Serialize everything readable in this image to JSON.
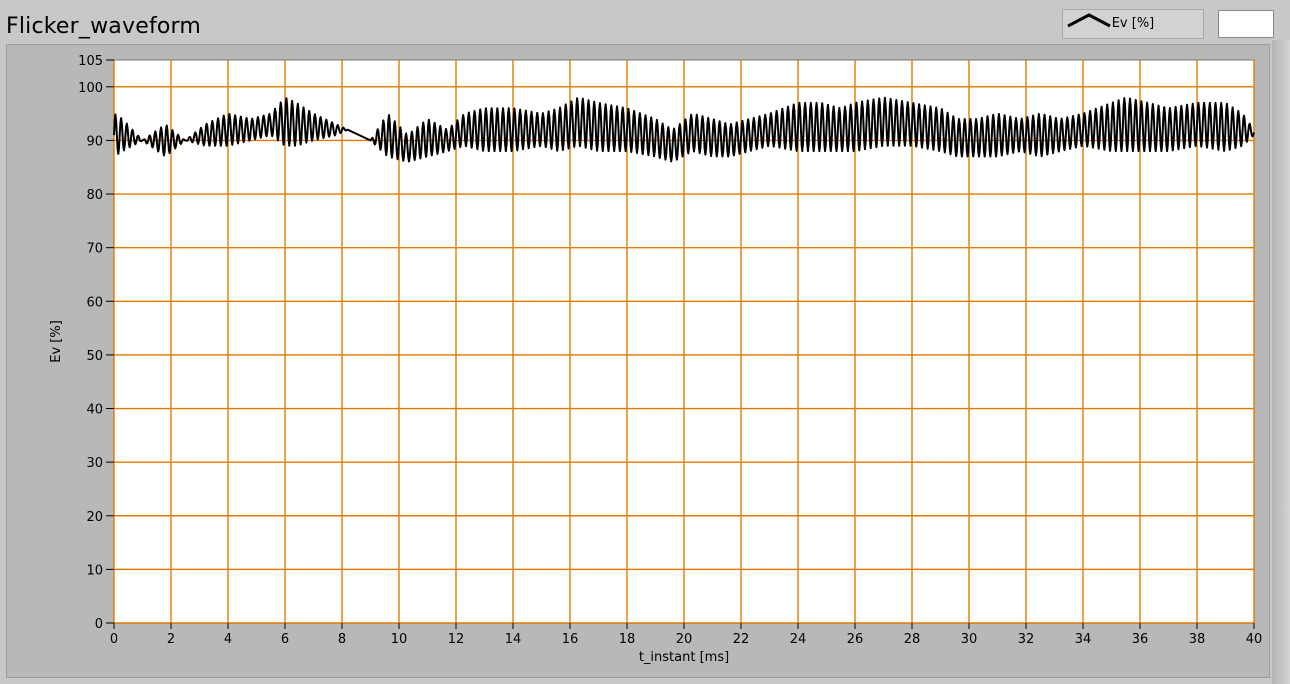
{
  "window": {
    "title": "Flicker_waveform"
  },
  "legend": {
    "label": "Ev [%]",
    "icon": "line-swatch-icon"
  },
  "colors": {
    "plot_background": "#ffffff",
    "grid": "#e07b00",
    "trace": "#000000",
    "panel": "#c8c8c8"
  },
  "chart_data": {
    "type": "line",
    "title": "Flicker_waveform",
    "xlabel": "t_instant [ms]",
    "ylabel": "Ev [%]",
    "xlim": [
      0,
      40
    ],
    "ylim": [
      0,
      105
    ],
    "xticks": [
      0,
      2,
      4,
      6,
      8,
      10,
      12,
      14,
      16,
      18,
      20,
      22,
      24,
      26,
      28,
      30,
      32,
      34,
      36,
      38,
      40
    ],
    "yticks": [
      0,
      10,
      20,
      30,
      40,
      50,
      60,
      70,
      80,
      90,
      100,
      105
    ],
    "grid": true,
    "legend_position": "top-right",
    "series": [
      {
        "name": "Ev [%]",
        "carrier_period_ms": 0.2,
        "envelope": {
          "t": [
            0,
            0.3,
            1,
            1.8,
            2.5,
            3.2,
            4,
            4.8,
            5.5,
            6,
            6.4,
            7,
            7.8,
            8.2,
            9,
            9.6,
            10.3,
            11,
            11.7,
            12.3,
            13,
            14,
            15,
            15.6,
            16.3,
            17,
            18,
            19,
            19.6,
            20.3,
            21,
            21.6,
            22.3,
            23,
            24,
            24.8,
            25.5,
            26,
            27,
            28,
            29,
            29.6,
            30.3,
            31,
            31.8,
            32.5,
            33.2,
            34,
            35,
            35.5,
            36.3,
            37,
            38,
            39,
            39.6,
            40
          ],
          "upper": [
            95,
            94,
            90,
            93,
            90,
            93,
            95,
            94,
            95,
            98,
            97,
            95,
            93,
            92,
            90,
            95,
            91,
            94,
            92,
            95,
            96,
            96,
            95,
            96,
            98,
            97,
            96,
            94,
            92,
            95,
            94,
            93,
            94,
            95,
            97,
            97,
            96,
            97,
            98,
            97,
            96,
            94,
            94,
            95,
            94,
            95,
            94,
            95,
            97,
            98,
            97,
            96,
            97,
            97,
            95,
            92
          ],
          "lower": [
            87,
            88,
            90,
            87,
            90,
            89,
            89,
            90,
            91,
            89,
            89,
            90,
            91,
            92,
            90,
            87,
            86,
            87,
            88,
            89,
            88,
            88,
            89,
            88,
            89,
            88,
            88,
            87,
            86,
            88,
            87,
            87,
            88,
            89,
            88,
            88,
            88,
            88,
            89,
            89,
            88,
            87,
            87,
            87,
            88,
            87,
            88,
            89,
            88,
            88,
            88,
            88,
            89,
            88,
            89,
            91
          ]
        }
      }
    ]
  }
}
